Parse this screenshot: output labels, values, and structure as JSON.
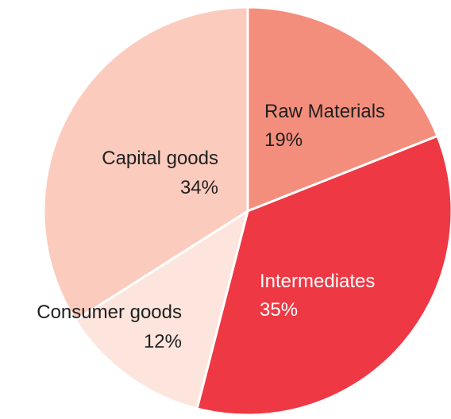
{
  "chart_data": {
    "type": "pie",
    "title": "",
    "slices": [
      {
        "label": "Raw Materials",
        "value": 19,
        "value_label": "19%",
        "color": "#f48e7c",
        "label_color": "#1f1f1f"
      },
      {
        "label": "Intermediates",
        "value": 35,
        "value_label": "35%",
        "color": "#ee3844",
        "label_color": "#ffffff"
      },
      {
        "label": "Consumer goods",
        "value": 12,
        "value_label": "12%",
        "color": "#fde5dd",
        "label_color": "#1f1f1f"
      },
      {
        "label": "Capital goods",
        "value": 34,
        "value_label": "34%",
        "color": "#fbcbbd",
        "label_color": "#1f1f1f"
      }
    ],
    "start_angle_deg": 0,
    "direction": "clockwise",
    "separator_color": "#ffffff",
    "legend": "none"
  }
}
